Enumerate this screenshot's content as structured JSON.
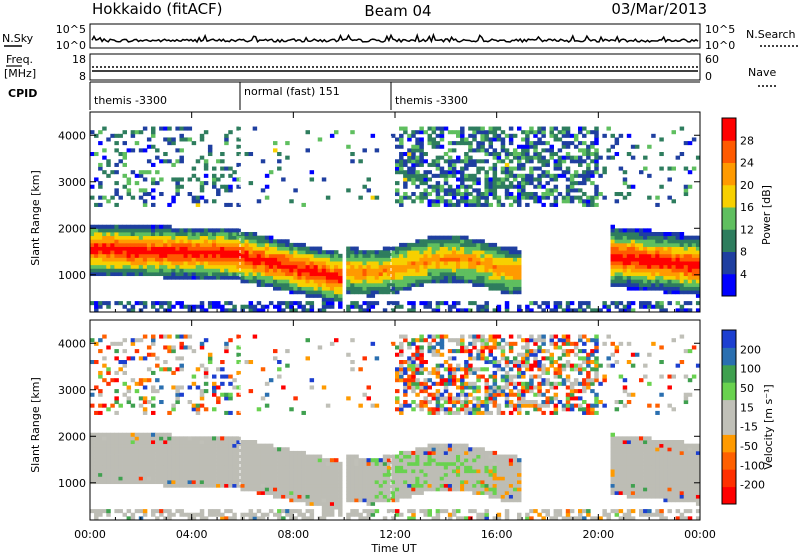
{
  "header": {
    "station": "Hokkaido (fitACF)",
    "beam": "Beam 04",
    "date": "03/Mar/2013"
  },
  "noise_panel": {
    "label": "N.Sky",
    "right_label": "N.Search",
    "left_ticks": [
      "10^5",
      "10^0"
    ],
    "right_ticks": [
      "10^5",
      "10^0"
    ]
  },
  "freq_panel": {
    "label_top": "Freq.",
    "label_bottom": "[MHz]",
    "right_label": "Nave",
    "left_ticks": [
      "18",
      "8"
    ],
    "right_ticks": [
      "60",
      "0"
    ]
  },
  "cpid": {
    "label": "CPID",
    "segments": [
      {
        "name": "themis -3300",
        "start_h": 0,
        "end_h": 6
      },
      {
        "name": "normal (fast) 151",
        "start_h": 6,
        "end_h": 12
      },
      {
        "name": "themis -3300",
        "start_h": 12,
        "end_h": 24
      }
    ]
  },
  "colors": {
    "power_scale": [
      "#0000ff",
      "#1f3fa0",
      "#2e7d5e",
      "#5fbf5f",
      "#f7d000",
      "#ff9a00",
      "#ff5a00",
      "#ff0000"
    ],
    "velocity_scale": [
      "#1c3fd0",
      "#2a6fb0",
      "#3fa04f",
      "#69d24f",
      "#c0c0b8",
      "#c0c0b8",
      "#ff9a00",
      "#ff6000",
      "#ff3000",
      "#ff0000"
    ],
    "ground_scatter": "#bdbdb5"
  },
  "chart_data": [
    {
      "type": "heatmap",
      "name": "power",
      "ylabel": "Slant Range [km]",
      "yticks": [
        "1000",
        "2000",
        "3000",
        "4000"
      ],
      "ylim": [
        200,
        4500
      ],
      "xlim": [
        0,
        24
      ],
      "colorbar_label": "Power [dB]",
      "colorbar_ticks": [
        "28",
        "24",
        "20",
        "16",
        "12",
        "8",
        "4"
      ],
      "colorbar_range": [
        0,
        30
      ]
    },
    {
      "type": "heatmap",
      "name": "velocity",
      "ylabel": "Slant Range [km]",
      "yticks": [
        "1000",
        "2000",
        "3000",
        "4000"
      ],
      "ylim": [
        200,
        4500
      ],
      "xlim": [
        0,
        24
      ],
      "colorbar_label": "Velocity [m s⁻¹]",
      "colorbar_ticks": [
        "200",
        "100",
        "50",
        "15",
        "-15",
        "-50",
        "-100",
        "-200"
      ]
    }
  ],
  "xaxis": {
    "label": "Time UT",
    "ticks": [
      "00:00",
      "04:00",
      "08:00",
      "12:00",
      "16:00",
      "20:00",
      "00:00"
    ]
  }
}
